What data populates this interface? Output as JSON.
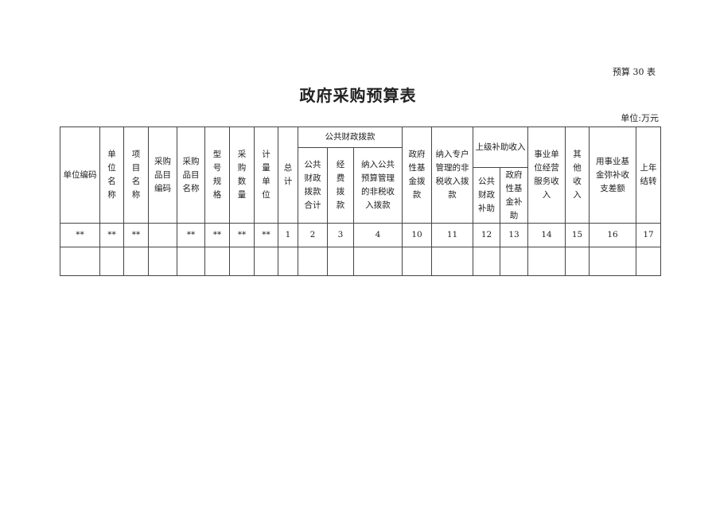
{
  "form_number": "预算 30 表",
  "title": "政府采购预算表",
  "unit": "单位:万元",
  "table": {
    "headers": [
      "单位编码",
      "单\n位\n名\n称",
      "项\n目\n名\n称",
      "采购\n品目\n编码",
      "采购\n品目\n名称",
      "型\n号\n规\n格",
      "采\n购\n数\n量",
      "计\n量\n单\n位",
      "总\n计",
      "公共\n财政\n拨款\n合计",
      "经\n费\n拨\n款",
      "纳入公共\n预算管理\n的非税收\n入拨款",
      "政府\n性基\n金拨\n款",
      "纳入专户\n管理的非\n税收入拨\n款",
      "公共\n财政\n补助",
      "政府\n性基\n金补\n助",
      "事业单\n位经营\n服务收\n入",
      "其\n他\n收\n入",
      "用事业基\n金弥补收\n支差额",
      "上年\n结转"
    ],
    "group_public_finance": "公共财政拨款",
    "group_superior_subsidy": "上级补助收入",
    "number_row": [
      "**",
      "**",
      "**",
      "",
      "**",
      "**",
      "**",
      "**",
      "1",
      "2",
      "3",
      "4",
      "10",
      "11",
      "12",
      "13",
      "14",
      "15",
      "16",
      "17"
    ],
    "empty_row": [
      "",
      "",
      "",
      "",
      "",
      "",
      "",
      "",
      "",
      "",
      "",
      "",
      "",
      "",
      "",
      "",
      "",
      "",
      "",
      ""
    ]
  }
}
